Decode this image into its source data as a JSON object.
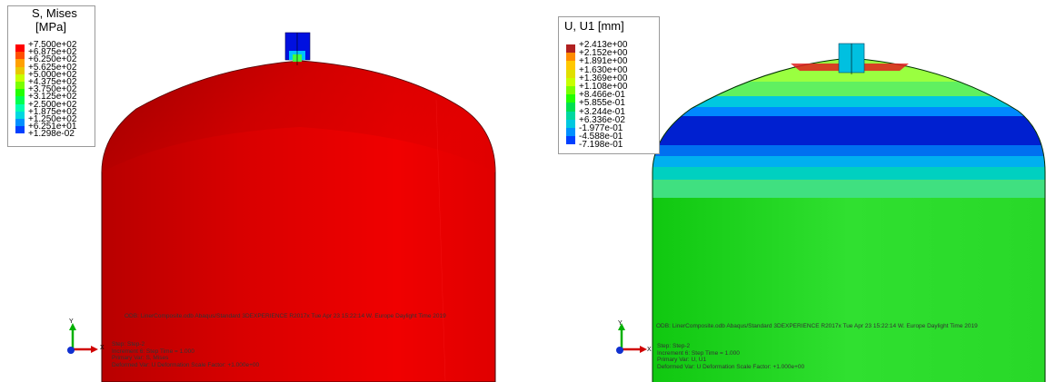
{
  "left": {
    "legend": {
      "title_line1": "S, Mises",
      "title_line2": "[MPa]",
      "values": [
        "+7.500e+02",
        "+6.875e+02",
        "+6.250e+02",
        "+5.625e+02",
        "+5.000e+02",
        "+4.375e+02",
        "+3.750e+02",
        "+3.125e+02",
        "+2.500e+02",
        "+1.875e+02",
        "+1.250e+02",
        "+6.251e+01",
        "+1.298e-02"
      ],
      "colors": [
        "#ff0000",
        "#ff5000",
        "#ffa000",
        "#e8c800",
        "#c8ff00",
        "#7aff00",
        "#22ff00",
        "#00ff50",
        "#00ffb0",
        "#00d8e0",
        "#0090ff",
        "#0040ff",
        "#0000ff"
      ]
    },
    "info_lines": [
      "ODB: LinerComposite.odb    Abaqus/Standard 3DEXPERIENCE R2017x    Tue Apr 23 15:22:14 W. Europe Daylight Time 2019",
      "Step: Step-2",
      "Increment     6: Step Time =    1.000",
      "Primary Var: S, Mises",
      "Deformed Var: U   Deformation Scale Factor: +1.000e+00"
    ],
    "triad": {
      "y": "Y",
      "x": "X"
    }
  },
  "right": {
    "legend": {
      "title": "U, U1 [mm]",
      "values": [
        "+2.413e+00",
        "+2.152e+00",
        "+1.891e+00",
        "+1.630e+00",
        "+1.369e+00",
        "+1.108e+00",
        "+8.466e-01",
        "+5.855e-01",
        "+3.244e-01",
        "+6.336e-02",
        "-1.977e-01",
        "-4.588e-01",
        "-7.198e-01"
      ],
      "colors": [
        "#b02020",
        "#ff8c00",
        "#ffc800",
        "#e0e000",
        "#c8ff00",
        "#7aff00",
        "#22ff00",
        "#00e050",
        "#00d8a0",
        "#00c8e0",
        "#0090ff",
        "#0040ff",
        "#0000c8"
      ]
    },
    "info_lines": [
      "ODB: LinerComposite.odb    Abaqus/Standard 3DEXPERIENCE R2017x    Tue Apr 23 15:22:14 W. Europe Daylight Time 2019",
      "Step: Step-2",
      "Increment     6: Step Time =    1.000",
      "Primary Var: U, U1",
      "Deformed Var: U   Deformation Scale Factor: +1.000e+00"
    ],
    "triad": {
      "y": "Y",
      "x": "X"
    }
  }
}
